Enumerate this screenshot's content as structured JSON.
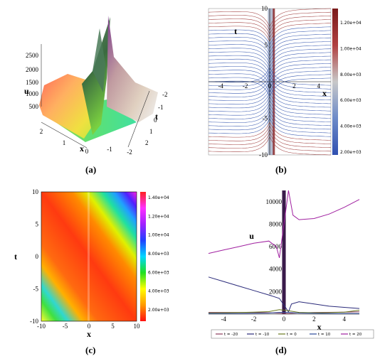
{
  "panels": [
    {
      "caption": "(a)"
    },
    {
      "caption": "(b)"
    },
    {
      "caption": "(c)"
    },
    {
      "caption": "(d)"
    }
  ],
  "chart_data": [
    {
      "id": "a",
      "type": "surface3d",
      "xlabel": "x",
      "ylabel": "t",
      "zlabel": "u",
      "x_ticks": [
        "2",
        "1",
        "0",
        "-1",
        "-2"
      ],
      "t_ticks": [
        "-2",
        "-1",
        "0",
        "1",
        "2"
      ],
      "u_ticks": [
        "500",
        "1000",
        "1500",
        "2000",
        "2500"
      ],
      "xlim": [
        -2,
        2
      ],
      "tlim": [
        -2,
        2
      ],
      "zlim": [
        500,
        2700
      ]
    },
    {
      "id": "b",
      "type": "contour",
      "xlabel": "x",
      "ylabel": "t",
      "x_ticks": [
        "-4",
        "-2",
        "0",
        "2",
        "4"
      ],
      "y_ticks": [
        "10",
        "5",
        "-5",
        "-10"
      ],
      "xlim": [
        -5,
        5
      ],
      "ylim": [
        -10,
        10
      ],
      "colorbar_ticks": [
        "1.20e+04",
        "1.00e+04",
        "8.00e+03",
        "6.00e+03",
        "4.00e+03",
        "2.00e+03"
      ],
      "colorbar_colors": [
        "#7a1a1a",
        "#b04040",
        "#c8c8c8",
        "#6c8ac8",
        "#3050b0"
      ]
    },
    {
      "id": "c",
      "type": "heatmap",
      "xlabel": "x",
      "ylabel": "t",
      "x_ticks": [
        "-10",
        "-5",
        "0",
        "5",
        "10"
      ],
      "y_ticks": [
        "10",
        "5",
        "0",
        "-5",
        "-10"
      ],
      "xlim": [
        -10,
        10
      ],
      "ylim": [
        -10,
        10
      ],
      "colorbar_ticks": [
        "1.40e+04",
        "1.20e+04",
        "1.00e+04",
        "8.00e+03",
        "6.00e+03",
        "4.00e+03",
        "2.00e+03"
      ],
      "colorbar_colors": [
        "#ff2020",
        "#ff30ff",
        "#a020ff",
        "#2040ff",
        "#00d8ff",
        "#20e020",
        "#ffff00",
        "#ff9900",
        "#ff1010"
      ]
    },
    {
      "id": "d",
      "type": "line",
      "xlabel": "x",
      "ylabel": "u",
      "x_ticks": [
        "-4",
        "-2",
        "0",
        "2",
        "4"
      ],
      "y_ticks": [
        "10000",
        "8000",
        "6000",
        "4000",
        "2000"
      ],
      "xlim": [
        -5,
        5
      ],
      "ylim": [
        0,
        11000
      ],
      "series": [
        {
          "name": "t = -20",
          "color": "#8b3a5a",
          "x": [
            -5,
            -4,
            -3,
            -2,
            -1,
            -0.3,
            0.3,
            1,
            2,
            3,
            4,
            5
          ],
          "y": [
            150,
            150,
            150,
            140,
            120,
            80,
            60,
            100,
            140,
            160,
            180,
            200
          ]
        },
        {
          "name": "t = -10",
          "color": "#2a2a7a",
          "x": [
            -5,
            -4,
            -3,
            -2,
            -1,
            -0.3,
            0.3,
            0.5,
            1,
            2,
            3,
            4,
            5
          ],
          "y": [
            3300,
            2900,
            2500,
            2100,
            1700,
            1400,
            200,
            900,
            1100,
            900,
            700,
            600,
            500
          ]
        },
        {
          "name": "t = 0",
          "color": "#6a7a20",
          "x": [
            -5,
            -4,
            -3,
            -2,
            -1,
            -0.3,
            0.3,
            1,
            2,
            3,
            4,
            5
          ],
          "y": [
            100,
            120,
            140,
            170,
            220,
            400,
            300,
            150,
            120,
            130,
            180,
            350
          ]
        },
        {
          "name": "t = 10",
          "color": "#2a4a9a",
          "x": [
            -5,
            -4,
            -3,
            -2,
            -1,
            -0.3,
            0.3,
            1,
            2,
            3,
            4,
            5
          ],
          "y": [
            60,
            60,
            60,
            70,
            90,
            150,
            150,
            90,
            70,
            60,
            60,
            60
          ]
        },
        {
          "name": "t = 20",
          "color": "#a020a0",
          "x": [
            -5,
            -4,
            -3,
            -2,
            -1,
            -0.5,
            -0.3,
            0.3,
            0.6,
            1,
            2,
            3,
            4,
            5
          ],
          "y": [
            5400,
            5700,
            6000,
            6300,
            6500,
            6000,
            5000,
            11000,
            8800,
            8400,
            8500,
            8900,
            9500,
            10200
          ]
        }
      ]
    }
  ]
}
